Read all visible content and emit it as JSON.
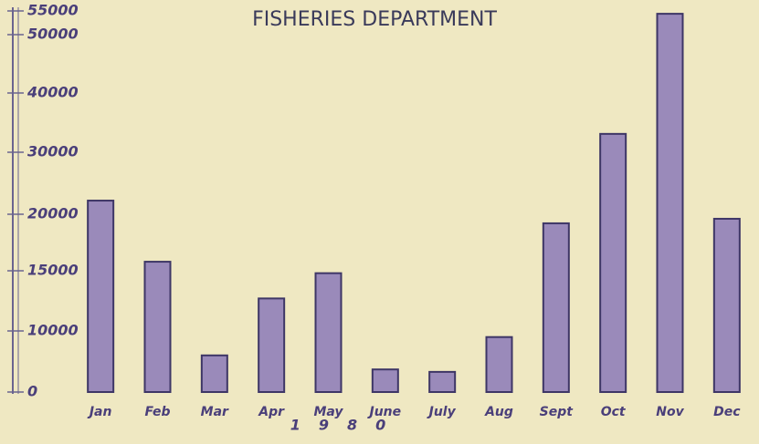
{
  "chart_data": {
    "type": "bar",
    "title": "FISHERIES DEPARTMENT",
    "categories": [
      "Jan",
      "Feb",
      "Mar",
      "Apr",
      "May",
      "June",
      "July",
      "Aug",
      "Sept",
      "Oct",
      "Nov",
      "Dec"
    ],
    "values": [
      22200,
      15800,
      6000,
      12700,
      14800,
      3700,
      3300,
      9000,
      19200,
      33100,
      54400,
      19600
    ],
    "color": "#9a8aba",
    "annotation": "1980",
    "ylim": [
      0,
      55000
    ],
    "yticks": [
      0,
      10000,
      15000,
      20000,
      30000,
      40000,
      50000,
      55000
    ],
    "grid": false
  }
}
